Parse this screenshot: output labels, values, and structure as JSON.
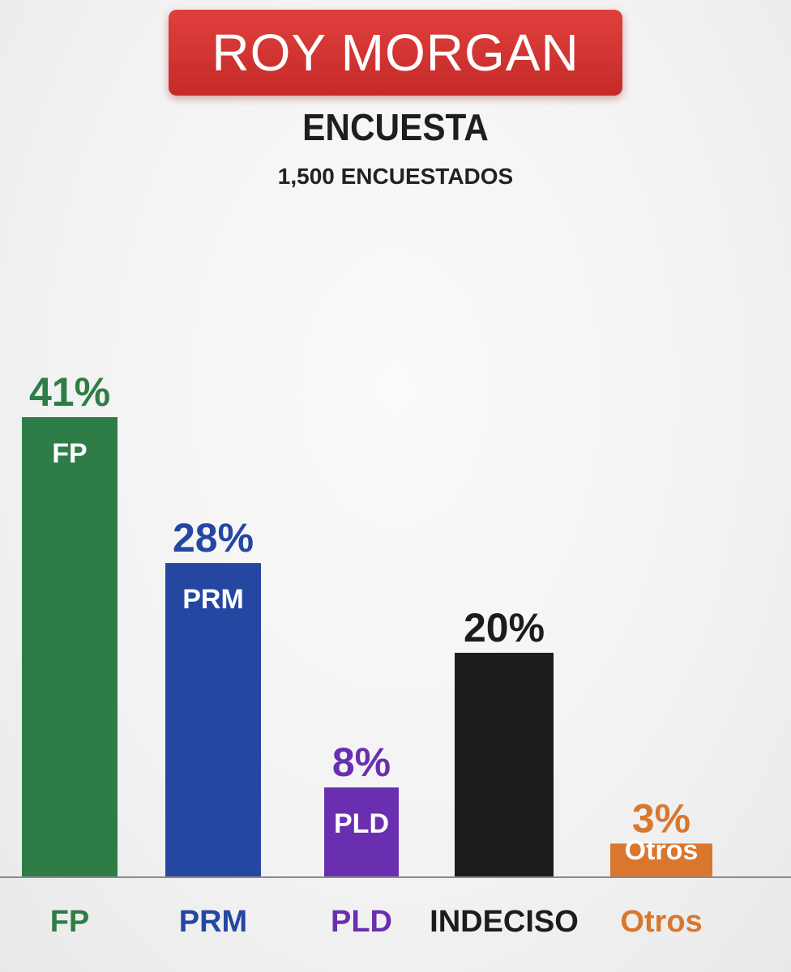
{
  "header": {
    "logo_text": "ROY MORGAN",
    "title": "ENCUESTA",
    "subtitle": "1,500 ENCUESTADOS"
  },
  "colors": {
    "logo_red": "#d23533",
    "FP": "#2f7d46",
    "PRM": "#2547a2",
    "PLD": "#6a2fb0",
    "INDECISO": "#1c1c1c",
    "Otros": "#d9772e"
  },
  "chart_data": {
    "type": "bar",
    "categories": [
      "FP",
      "PRM",
      "PLD",
      "INDECISO",
      "Otros"
    ],
    "values": [
      41,
      28,
      8,
      20,
      3
    ],
    "value_labels": [
      "41%",
      "28%",
      "8%",
      "20%",
      "3%"
    ],
    "bar_labels": [
      "FP",
      "PRM",
      "PLD",
      "",
      "Otros"
    ],
    "colors": [
      "#2f7d46",
      "#2547a2",
      "#6a2fb0",
      "#1c1c1c",
      "#d9772e"
    ],
    "grid": false,
    "legend": "none"
  }
}
